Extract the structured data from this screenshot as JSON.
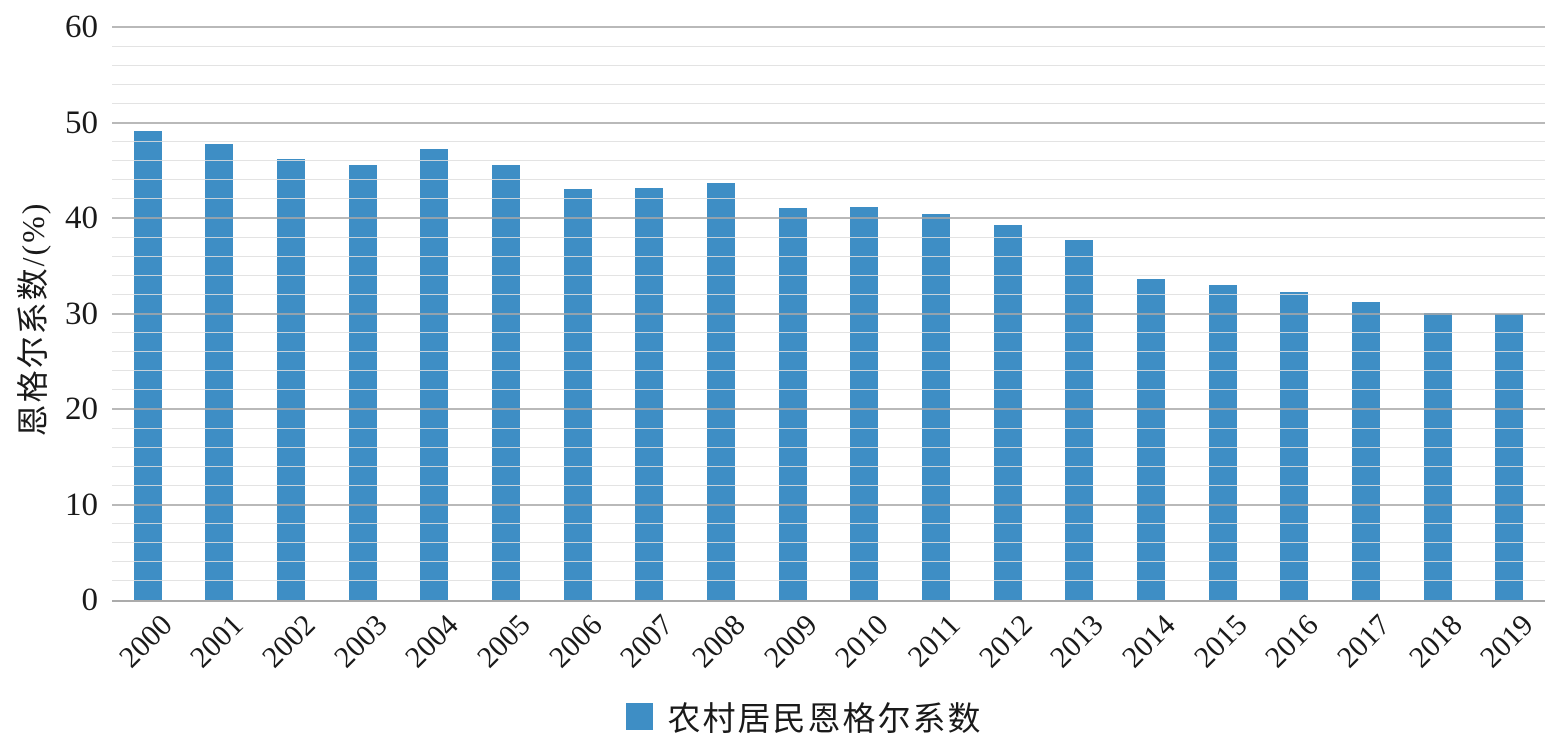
{
  "chart_data": {
    "type": "bar",
    "title": "",
    "categories": [
      "2000",
      "2001",
      "2002",
      "2003",
      "2004",
      "2005",
      "2006",
      "2007",
      "2008",
      "2009",
      "2010",
      "2011",
      "2012",
      "2013",
      "2014",
      "2015",
      "2016",
      "2017",
      "2018",
      "2019"
    ],
    "values": [
      49.1,
      47.7,
      46.2,
      45.6,
      47.2,
      45.5,
      43.0,
      43.1,
      43.7,
      41.0,
      41.1,
      40.4,
      39.3,
      37.7,
      33.6,
      33.0,
      32.2,
      31.2,
      30.1,
      30.0
    ],
    "xlabel": "",
    "ylabel": "恩格尔系数/(%)",
    "ylim": [
      0,
      60
    ],
    "ytick_step": 10,
    "minor_grid_step": 2,
    "grid": true,
    "legend": {
      "position": "bottom",
      "entries": [
        {
          "label": "农村居民恩格尔系数",
          "color": "#3e8ec5"
        }
      ]
    },
    "bar_color": "#3e8ec5",
    "colors": {
      "major_gridline": "#a8a8a8",
      "minor_gridline": "#dedede",
      "axis_line": "#ababab",
      "text": "#1a1a1a",
      "background": "#ffffff"
    }
  }
}
